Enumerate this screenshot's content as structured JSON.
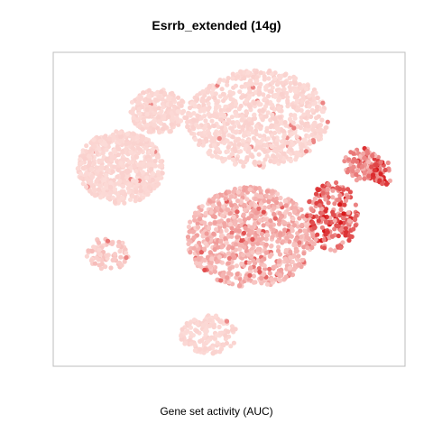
{
  "chart_data": {
    "type": "scatter",
    "title": "Esrrb_extended (14g)",
    "xlabel": "Gene set activity (AUC)",
    "ylabel": "",
    "axes_visible": false,
    "grid": false,
    "color_scale": {
      "low": "#fde0dc",
      "high": "#d7191c"
    },
    "clusters": [
      {
        "name": "",
        "x": [
          -10,
          40
        ],
        "y": [
          5,
          40
        ],
        "n": 900,
        "activity": 0.05
      },
      {
        "name": "",
        "x": [
          -48,
          -18
        ],
        "y": [
          -8,
          18
        ],
        "n": 700,
        "activity": 0.05
      },
      {
        "name": "",
        "x": [
          -30,
          -10
        ],
        "y": [
          17,
          33
        ],
        "n": 250,
        "activity": 0.05
      },
      {
        "name": "",
        "x": [
          -10,
          35
        ],
        "y": [
          -38,
          -2
        ],
        "n": 900,
        "activity": 0.22
      },
      {
        "name": "",
        "x": [
          -45,
          -30
        ],
        "y": [
          -32,
          -20
        ],
        "n": 80,
        "activity": 0.12
      },
      {
        "name": "",
        "x": [
          -12,
          8
        ],
        "y": [
          -62,
          -48
        ],
        "n": 150,
        "activity": 0.05
      },
      {
        "name": "",
        "x": [
          32,
          50
        ],
        "y": [
          -25,
          0
        ],
        "n": 200,
        "activity": 0.55
      },
      {
        "name": "",
        "x": [
          45,
          58
        ],
        "y": [
          0,
          12
        ],
        "n": 120,
        "activity": 0.35
      },
      {
        "name": "",
        "x": [
          55,
          62
        ],
        "y": [
          -2,
          8
        ],
        "n": 40,
        "activity": 0.6
      }
    ],
    "xlim": [
      -55,
      65
    ],
    "ylim": [
      -65,
      45
    ]
  }
}
